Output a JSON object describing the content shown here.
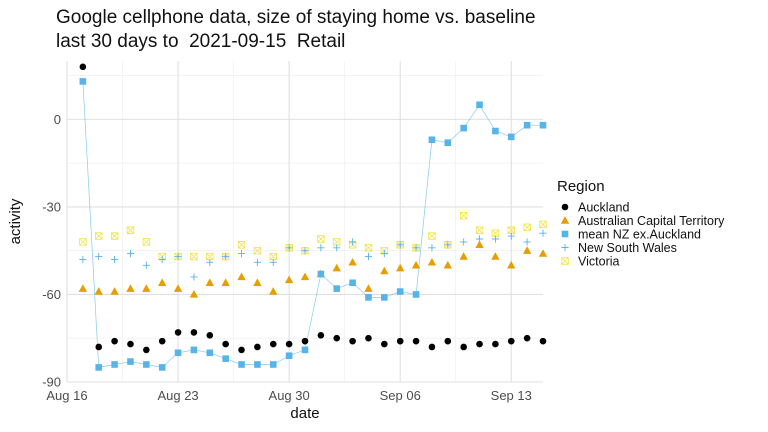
{
  "chart_data": {
    "type": "scatter",
    "title": "Google cellphone data, size of staying home vs. baseline",
    "subtitle": "last 30 days to  2021-09-15  Retail",
    "xlabel": "date",
    "ylabel": "activity",
    "xlim": [
      "2021-08-16",
      "2021-09-15"
    ],
    "ylim": [
      -90,
      20
    ],
    "x_ticks": [
      {
        "date": "2021-08-16",
        "label": "Aug 16"
      },
      {
        "date": "2021-08-23",
        "label": "Aug 23"
      },
      {
        "date": "2021-08-30",
        "label": "Aug 30"
      },
      {
        "date": "2021-09-06",
        "label": "Sep 06"
      },
      {
        "date": "2021-09-13",
        "label": "Sep 13"
      }
    ],
    "y_ticks": [
      0,
      -30,
      -60,
      -90
    ],
    "grid": true,
    "legend": {
      "title": "Region",
      "position": "right"
    },
    "x": [
      "2021-08-17",
      "2021-08-18",
      "2021-08-19",
      "2021-08-20",
      "2021-08-21",
      "2021-08-22",
      "2021-08-23",
      "2021-08-24",
      "2021-08-25",
      "2021-08-26",
      "2021-08-27",
      "2021-08-28",
      "2021-08-29",
      "2021-08-30",
      "2021-08-31",
      "2021-09-01",
      "2021-09-02",
      "2021-09-03",
      "2021-09-04",
      "2021-09-05",
      "2021-09-06",
      "2021-09-07",
      "2021-09-08",
      "2021-09-09",
      "2021-09-10",
      "2021-09-11",
      "2021-09-12",
      "2021-09-13",
      "2021-09-14",
      "2021-09-15"
    ],
    "series": [
      {
        "name": "Auckland",
        "color": "#000000",
        "marker": "circle",
        "line": false,
        "values": [
          18,
          -78,
          -76,
          -77,
          -79,
          -76,
          -73,
          -73,
          -74,
          -77,
          -79,
          -78,
          -77,
          -77,
          -76,
          -74,
          -75,
          -76,
          -75,
          -77,
          -76,
          -76,
          -78,
          -76,
          -78,
          -77,
          -77,
          -76,
          -75,
          -76
        ]
      },
      {
        "name": "Australian Capital Territory",
        "color": "#E69F00",
        "marker": "triangle",
        "line": false,
        "values": [
          -58,
          -59,
          -59,
          -58,
          -58,
          -56,
          -58,
          -60,
          -56,
          -56,
          -54,
          -56,
          -59,
          -55,
          -54,
          -53,
          -51,
          -49,
          -58,
          -52,
          -51,
          -50,
          -49,
          -50,
          -47,
          -43,
          -47,
          -50,
          -45,
          -46
        ]
      },
      {
        "name": "mean NZ ex.Auckland",
        "color": "#56B4E9",
        "marker": "square",
        "line": true,
        "values": [
          13,
          -85,
          -84,
          -83,
          -84,
          -85,
          -80,
          -79,
          -80,
          -82,
          -84,
          -84,
          -84,
          -81,
          -79,
          -53,
          -58,
          -56,
          -61,
          -61,
          -59,
          -60,
          -7,
          -8,
          -3,
          5,
          -4,
          -6,
          -2,
          -2
        ]
      },
      {
        "name": "New South Wales",
        "color": "#56B4E9",
        "marker": "plus",
        "line": false,
        "values": [
          -48,
          -47,
          -48,
          -46,
          -50,
          -48,
          -47,
          -54,
          -49,
          -47,
          -46,
          -49,
          -49,
          -44,
          -45,
          -44,
          -44,
          -42,
          -47,
          -46,
          -43,
          -44,
          -44,
          -43,
          -42,
          -41,
          -41,
          -40,
          -42,
          -39
        ]
      },
      {
        "name": "Victoria",
        "color": "#F0E442",
        "marker": "xbox",
        "line": false,
        "values": [
          -42,
          -40,
          -40,
          -38,
          -42,
          -47,
          -47,
          -47,
          -47,
          -47,
          -43,
          -45,
          -47,
          -44,
          -45,
          -41,
          -42,
          -43,
          -44,
          -45,
          -43,
          -44,
          -40,
          -43,
          -33,
          -38,
          -39,
          -38,
          -37,
          -36
        ]
      }
    ]
  }
}
